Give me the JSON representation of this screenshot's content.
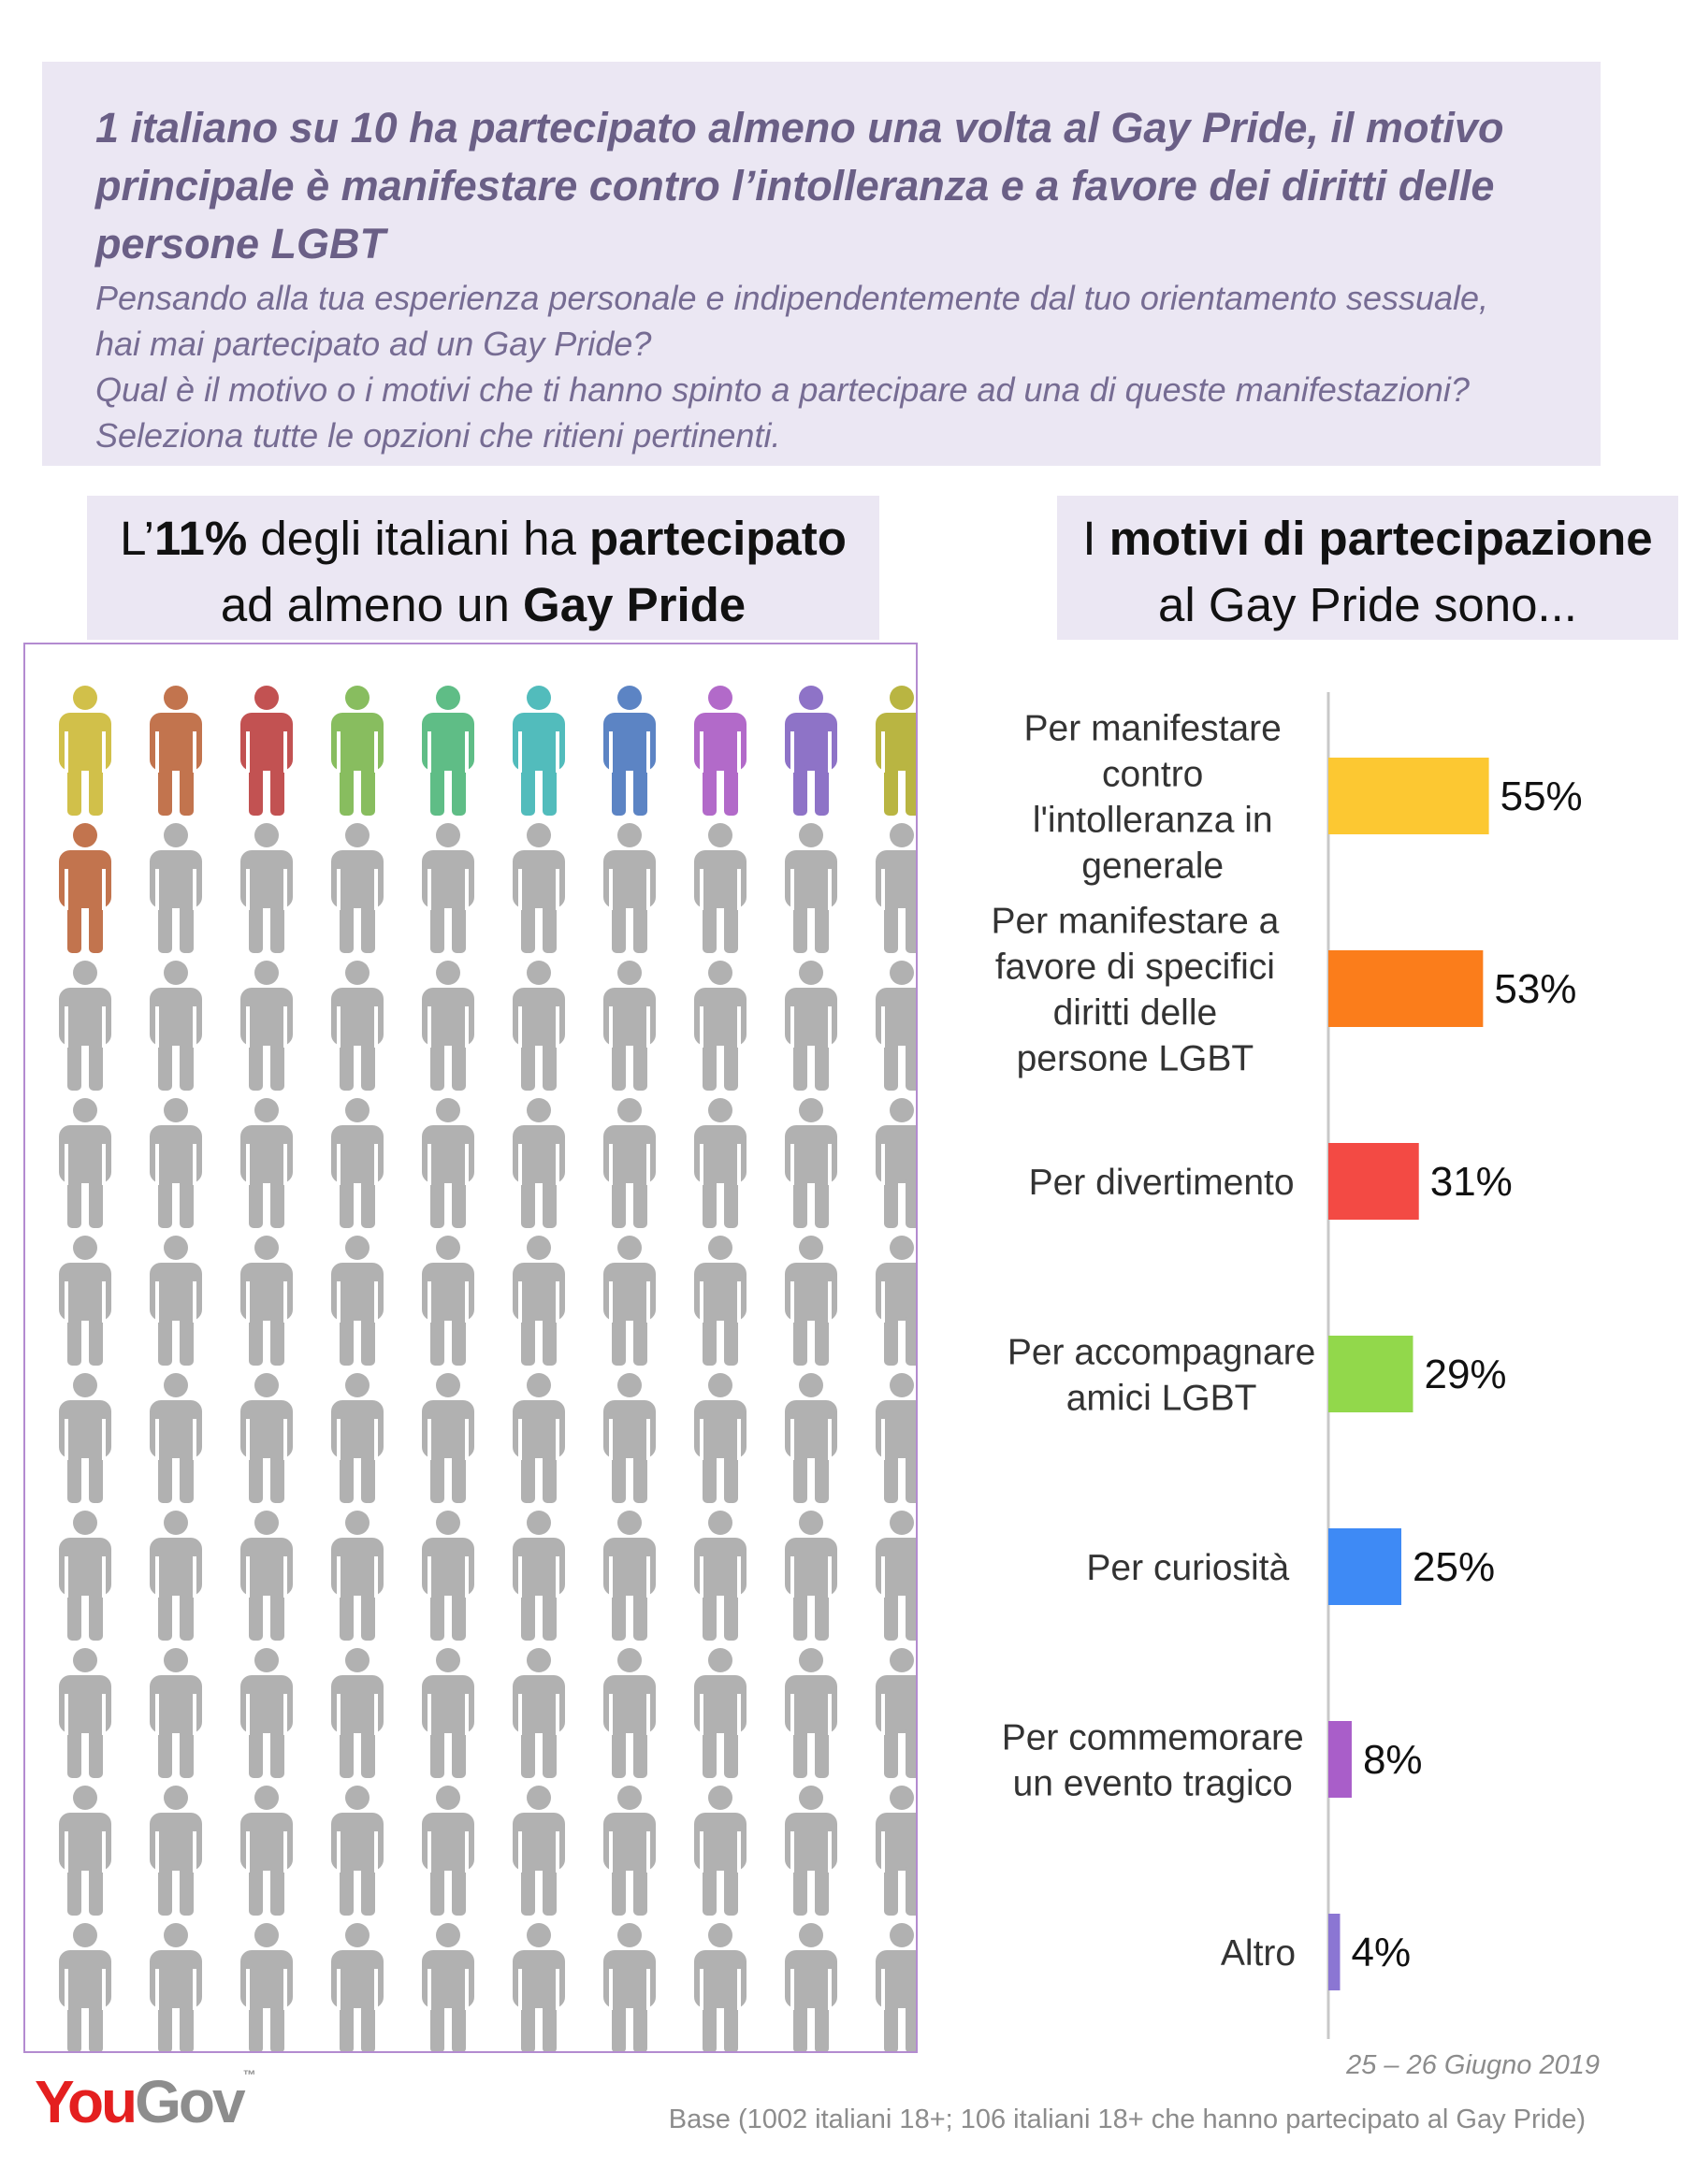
{
  "header": {
    "headline_lines": [
      "1 italiano su 10 ha partecipato almeno una volta al Gay Pride, il motivo",
      "principale è manifestare contro l’intolleranza e a favore dei diritti delle",
      "persone LGBT"
    ],
    "question_lines": [
      "Pensando alla tua esperienza personale e indipendentemente dal tuo orientamento sessuale,",
      "hai mai partecipato ad un Gay Pride?",
      "Qual è il motivo o i motivi che ti hanno spinto a partecipare ad una di queste manifestazioni?",
      "Seleziona tutte le opzioni che ritieni pertinenti."
    ]
  },
  "left_box": {
    "t1": "L’",
    "t2": "11%",
    "t3": " degli italiani ha ",
    "t4": "partecipato",
    "t5": "ad almeno un ",
    "t6": "Gay Pride"
  },
  "right_box": {
    "t1": "I ",
    "t2": "motivi di partecipazione",
    "t3": "al Gay Pride sono..."
  },
  "colors": {
    "icon_gray": "#b1b1b1",
    "icon_colored": [
      "#d1c04a",
      "#c2744e",
      "#c25252",
      "#88bd5f",
      "#5fbd86",
      "#52bcbc",
      "#5c84c4",
      "#b26ac9",
      "#8e73c7",
      "#b9b542",
      "#c2744e"
    ]
  },
  "chart_data": [
    {
      "type": "pictogram",
      "total": 100,
      "highlighted": 11,
      "value_percent": 11
    },
    {
      "type": "bar",
      "orientation": "horizontal",
      "categories": [
        "Per manifestare contro l'intolleranza in generale",
        "Per manifestare a favore di specifici diritti delle persone LGBT",
        "Per divertimento",
        "Per accompagnare amici LGBT",
        "Per curiosità",
        "Per commemorare un evento tragico",
        "Altro"
      ],
      "label_lines": [
        [
          "Per manifestare",
          "contro",
          "l'intolleranza in",
          "generale"
        ],
        [
          "Per manifestare a",
          "favore di specifici",
          "diritti delle",
          "persone LGBT"
        ],
        [
          "Per divertimento"
        ],
        [
          "Per accompagnare",
          "amici LGBT"
        ],
        [
          "Per curiosità"
        ],
        [
          "Per commemorare",
          "un evento tragico"
        ],
        [
          "Altro"
        ]
      ],
      "values": [
        55,
        53,
        31,
        29,
        25,
        8,
        4
      ],
      "value_labels": [
        "55%",
        "53%",
        "31%",
        "29%",
        "25%",
        "8%",
        "4%"
      ],
      "colors": [
        "#fcc832",
        "#fb7d1b",
        "#f34a44",
        "#92d84b",
        "#3e8af5",
        "#a95ec9",
        "#8b76d3"
      ],
      "xlim": [
        0,
        100
      ]
    }
  ],
  "footer": {
    "date": "25 – 26 Giugno 2019",
    "base": "Base (1002 italiani 18+; 106 italiani 18+ che hanno partecipato al Gay Pride)",
    "logo_you": "You",
    "logo_gov": "Gov"
  }
}
